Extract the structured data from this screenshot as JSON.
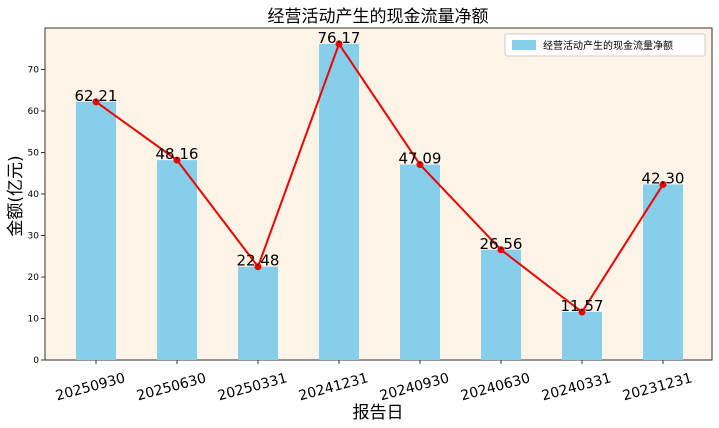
{
  "chart_data": {
    "type": "bar",
    "title": "经营活动产生的现金流量净额",
    "xlabel": "报告日",
    "ylabel": "金额(亿元)",
    "categories": [
      "20250930",
      "20250630",
      "20250331",
      "20241231",
      "20240930",
      "20240630",
      "20240331",
      "20231231"
    ],
    "series": [
      {
        "name": "经营活动产生的现金流量净额",
        "values": [
          62.21,
          48.16,
          22.48,
          76.17,
          47.09,
          26.56,
          11.57,
          42.3
        ],
        "data_labels": [
          "62.21",
          "48.16",
          "22.48",
          "76.17",
          "47.09",
          "26.56",
          "11.57",
          "42.30"
        ]
      }
    ],
    "line_overlay": true,
    "ylim": [
      0,
      80
    ],
    "yticks": [
      0,
      10,
      20,
      30,
      40,
      50,
      60,
      70
    ],
    "legend_position": "top-right",
    "grid": false,
    "colors": {
      "bar": "#87CEEB",
      "line": "#EE0000",
      "plot_background": "#FDF3E6"
    }
  }
}
